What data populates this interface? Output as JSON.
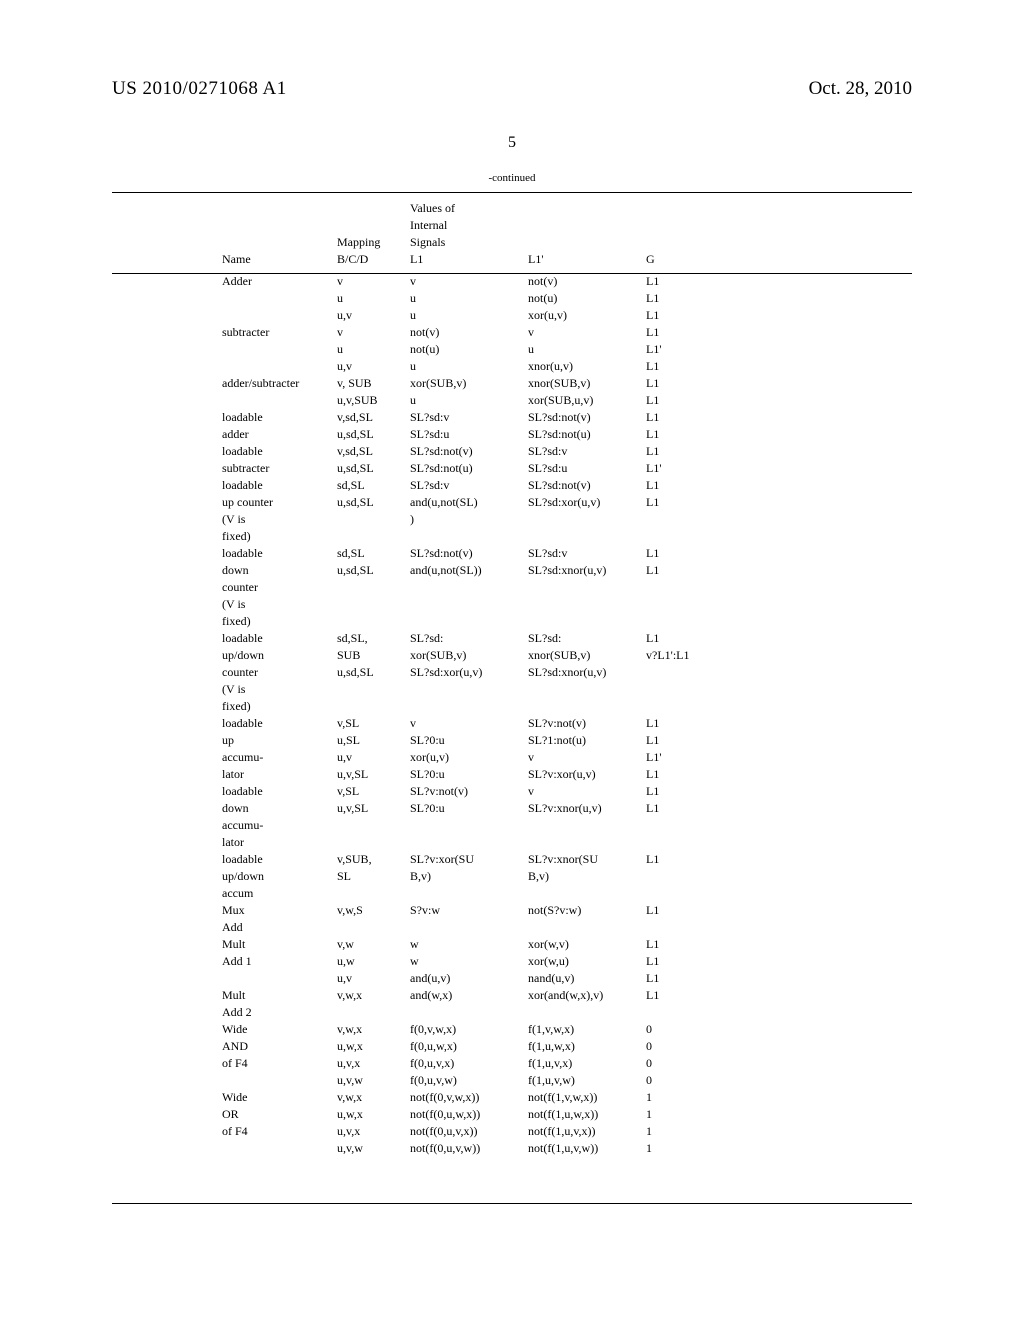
{
  "header": {
    "document_number": "US 2010/0271068 A1",
    "date": "Oct. 28, 2010",
    "page": "5"
  },
  "table": {
    "continued": "-continued",
    "columns": {
      "name": "Name",
      "mapping": [
        "Mapping",
        "B/C/D"
      ],
      "l1": [
        "Values of",
        "Internal",
        "Signals",
        "L1"
      ],
      "l1p": "L1'",
      "g": "G"
    },
    "rows": {
      "name": [
        "Adder",
        "",
        "",
        "subtracter",
        "",
        "",
        "adder/subtracter",
        "",
        "loadable",
        "adder",
        "loadable",
        "subtracter",
        "loadable",
        "up counter",
        "(V is",
        "fixed)",
        "loadable",
        "down",
        "counter",
        "(V is",
        "fixed)",
        "loadable",
        "up/down",
        "counter",
        "(V is",
        "fixed)",
        "loadable",
        "up",
        "accumu-",
        "lator",
        "loadable",
        "down",
        "accumu-",
        "lator",
        "loadable",
        "up/down",
        "accum",
        "Mux",
        "Add",
        "Mult",
        "Add 1",
        "",
        "Mult",
        "Add 2",
        "Wide",
        "AND",
        "of F4",
        "",
        "Wide",
        "OR",
        "of F4",
        ""
      ],
      "mapping": [
        "v",
        "u",
        "u,v",
        "v",
        "u",
        "u,v",
        "v, SUB",
        "u,v,SUB",
        "v,sd,SL",
        "u,sd,SL",
        "v,sd,SL",
        "u,sd,SL",
        "sd,SL",
        "u,sd,SL",
        "",
        "",
        "sd,SL",
        "u,sd,SL",
        "",
        "",
        "",
        "sd,SL,",
        "SUB",
        "u,sd,SL",
        "",
        "",
        "v,SL",
        "u,SL",
        "u,v",
        "u,v,SL",
        "v,SL",
        "u,v,SL",
        "",
        "",
        "v,SUB,",
        "SL",
        "",
        "v,w,S",
        "",
        "v,w",
        "u,w",
        "u,v",
        "v,w,x",
        "",
        "v,w,x",
        "u,w,x",
        "u,v,x",
        "u,v,w",
        "v,w,x",
        "u,w,x",
        "u,v,x",
        "u,v,w"
      ],
      "l1": [
        "v",
        "u",
        "u",
        "not(v)",
        "not(u)",
        "u",
        "xor(SUB,v)",
        "u",
        "SL?sd:v",
        "SL?sd:u",
        "SL?sd:not(v)",
        "SL?sd:not(u)",
        "SL?sd:v",
        "and(u,not(SL)",
        ")",
        "",
        "SL?sd:not(v)",
        "and(u,not(SL))",
        "",
        "",
        "",
        "SL?sd:",
        "xor(SUB,v)",
        "SL?sd:xor(u,v)",
        "",
        "",
        "v",
        "SL?0:u",
        "xor(u,v)",
        "SL?0:u",
        "SL?v:not(v)",
        "SL?0:u",
        "",
        "",
        "SL?v:xor(SU",
        "B,v)",
        "",
        "S?v:w",
        "",
        "w",
        "w",
        "and(u,v)",
        "and(w,x)",
        "",
        "f(0,v,w,x)",
        "f(0,u,w,x)",
        "f(0,u,v,x)",
        "f(0,u,v,w)",
        "not(f(0,v,w,x))",
        "not(f(0,u,w,x))",
        "not(f(0,u,v,x))",
        "not(f(0,u,v,w))"
      ],
      "l1p": [
        "not(v)",
        "not(u)",
        "xor(u,v)",
        "v",
        "u",
        "xnor(u,v)",
        "xnor(SUB,v)",
        "xor(SUB,u,v)",
        "SL?sd:not(v)",
        "SL?sd:not(u)",
        "SL?sd:v",
        "SL?sd:u",
        "SL?sd:not(v)",
        "SL?sd:xor(u,v)",
        "",
        "",
        "SL?sd:v",
        "SL?sd:xnor(u,v)",
        "",
        "",
        "",
        "SL?sd:",
        "xnor(SUB,v)",
        "SL?sd:xnor(u,v)",
        "",
        "",
        "SL?v:not(v)",
        "SL?1:not(u)",
        "v",
        "SL?v:xor(u,v)",
        "v",
        "SL?v:xnor(u,v)",
        "",
        "",
        "SL?v:xnor(SU",
        "B,v)",
        "",
        "not(S?v:w)",
        "",
        "xor(w,v)",
        "xor(w,u)",
        "nand(u,v)",
        "xor(and(w,x),v)",
        "",
        "f(1,v,w,x)",
        "f(1,u,w,x)",
        "f(1,u,v,x)",
        "f(1,u,v,w)",
        "not(f(1,v,w,x))",
        "not(f(1,u,w,x))",
        "not(f(1,u,v,x))",
        "not(f(1,u,v,w))"
      ],
      "g": [
        "L1",
        "L1",
        "L1",
        "L1",
        "L1'",
        "L1",
        "L1",
        "L1",
        "L1",
        "L1",
        "L1",
        "L1'",
        "L1",
        "L1",
        "",
        "",
        "L1",
        "L1",
        "",
        "",
        "",
        "L1",
        "v?L1':L1",
        "",
        "",
        "",
        "L1",
        "L1",
        "L1'",
        "L1",
        "L1",
        "L1",
        "",
        "",
        "L1",
        "",
        "",
        "L1",
        "",
        "L1",
        "L1",
        "L1",
        "L1",
        "",
        "0",
        "0",
        "0",
        "0",
        "1",
        "1",
        "1",
        "1"
      ]
    }
  }
}
